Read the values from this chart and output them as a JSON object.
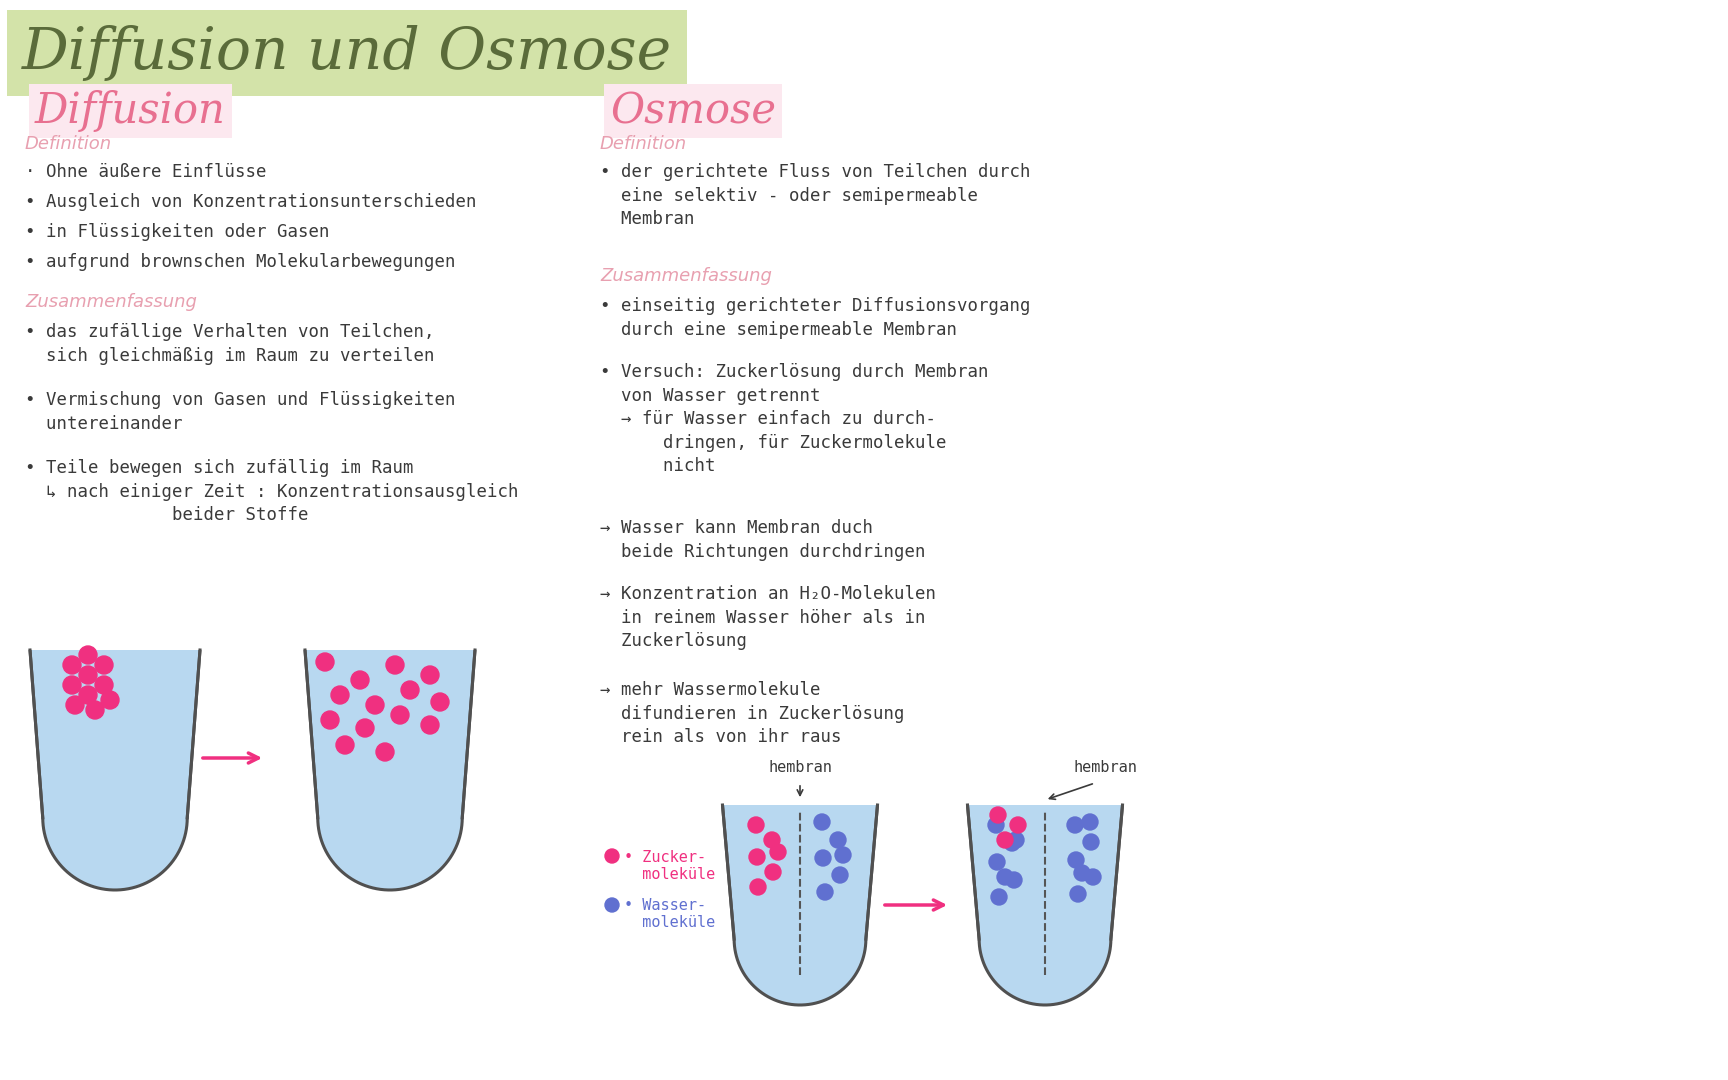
{
  "bg_color": "#ffffff",
  "title": "Diffusion und Osmose",
  "title_color": "#5a6b3a",
  "title_highlight": "#cfe0a0",
  "title_fontsize": 42,
  "left_heading": "Diffusion",
  "left_heading_color": "#e87090",
  "right_heading": "Osmose",
  "right_heading_color": "#e87090",
  "section_label_color": "#e8a0b0",
  "body_color": "#3a3a3a",
  "pink_dot_color": "#f03080",
  "blue_dot_color": "#6070d0",
  "container_fill": "#b8d8f0",
  "container_edge": "#505050",
  "arrow_color": "#f03080",
  "left_def_label": "Definition",
  "left_def_bullets": [
    "· Ohne äußere Einflüsse",
    "• Ausgleich von Konzentrationsunterschieden",
    "• in Flüssigkeiten oder Gasen",
    "• aufgrund brownschen Molekularbewegungen"
  ],
  "left_sum_label": "Zusammenfassung",
  "left_sum_bullets": [
    "• das zufällige Verhalten von Teilchen,\n  sich gleichmäßig im Raum zu verteilen",
    "• Vermischung von Gasen und Flüssigkeiten\n  untereinander",
    "• Teile bewegen sich zufällig im Raum\n  ↳ nach einiger Zeit : Konzentrationsausgleich\n              beider Stoffe"
  ],
  "right_def_label": "Definition",
  "right_def_bullets": [
    "• der gerichtete Fluss von Teilchen durch\n  eine selektiv - oder semipermeable\n  Membran"
  ],
  "right_sum_label": "Zusammenfassung",
  "right_sum_bullets": [
    "• einseitig gerichteter Diffusionsvorgang\n  durch eine semipermeable Membran",
    "• Versuch: Zuckerlösung durch Membran\n  von Wasser getrennt\n  → für Wasser einfach zu durch-\n      dringen, für Zuckermolekule\n      nicht",
    "→ Wasser kann Membran duch\n  beide Richtungen durchdringen",
    "→ Konzentration an H₂O-Molekulen\n  in reinem Wasser höher als in\n  Zuckerlösung",
    "→ mehr Wassermolekule\n  difundieren in Zuckerlösung\n  rein als von ihr raus"
  ],
  "zucker_label": "• Zucker-\n  moleküle",
  "wasser_label": "• Wasser-\n  moleküle",
  "zucker_color": "#f03080",
  "wasser_color": "#6070d0",
  "membran_label": "hembran"
}
